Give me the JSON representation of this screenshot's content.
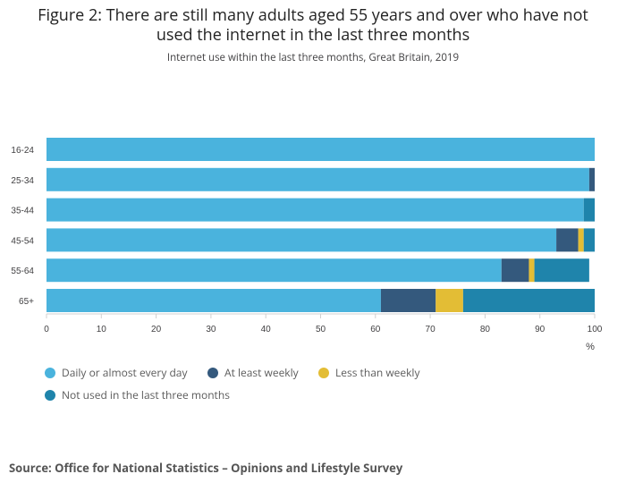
{
  "title": "Figure 2: There are still many adults aged 55 years and over who have not used the internet in the last three months",
  "subtitle": "Internet use within the last three months, Great Britain, 2019",
  "source": "Source: Office for National Statistics – Opinions and Lifestyle Survey",
  "chart_data": {
    "type": "bar",
    "orientation": "horizontal",
    "stacked": true,
    "categories": [
      "16-24",
      "25-34",
      "35-44",
      "45-54",
      "55-64",
      "65+"
    ],
    "series": [
      {
        "name": "Daily or almost every day",
        "color": "#4ab3dd",
        "values": [
          100,
          99,
          98,
          93,
          83,
          61
        ]
      },
      {
        "name": "At least weekly",
        "color": "#34597d",
        "values": [
          0,
          1,
          0,
          4,
          5,
          10
        ]
      },
      {
        "name": "Less than weekly",
        "color": "#e3bd35",
        "values": [
          0,
          0,
          0,
          1,
          1,
          5
        ]
      },
      {
        "name": "Not used in the last three months",
        "color": "#1f84ab",
        "values": [
          0,
          0,
          2,
          2,
          10,
          24
        ]
      }
    ],
    "xlim": [
      0,
      100
    ],
    "xticks": [
      0,
      10,
      20,
      30,
      40,
      50,
      60,
      70,
      80,
      90,
      100
    ],
    "xlabel": "%",
    "ylabel": "",
    "grid": false,
    "legend_position": "bottom"
  }
}
